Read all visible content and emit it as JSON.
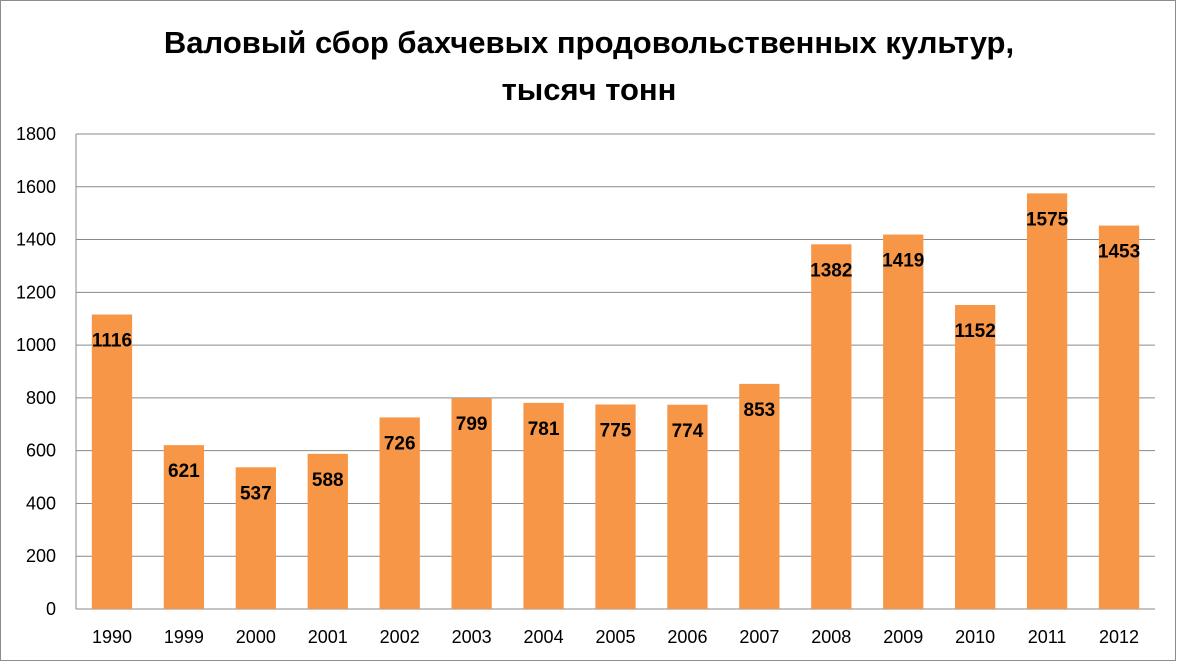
{
  "chart_data": {
    "type": "bar",
    "title": "Валовый сбор бахчевых продовольственных культур,",
    "subtitle": "тысяч тонн",
    "xlabel": "",
    "ylabel": "",
    "categories": [
      "1990",
      "1999",
      "2000",
      "2001",
      "2002",
      "2003",
      "2004",
      "2005",
      "2006",
      "2007",
      "2008",
      "2009",
      "2010",
      "2011",
      "2012"
    ],
    "values": [
      1116,
      621,
      537,
      588,
      726,
      799,
      781,
      775,
      774,
      853,
      1382,
      1419,
      1152,
      1575,
      1453
    ],
    "data_labels": [
      "1116",
      "621",
      "537",
      "588",
      "726",
      "799",
      "781",
      "775",
      "774",
      "853",
      "1382",
      "1419",
      "1152",
      "1575",
      "1453"
    ],
    "ylim": [
      0,
      1800
    ],
    "yticks": [
      "0",
      "200",
      "400",
      "600",
      "800",
      "1000",
      "1200",
      "1400",
      "1600",
      "1800"
    ],
    "grid": true,
    "legend": "none",
    "bar_color": "#f79646"
  }
}
